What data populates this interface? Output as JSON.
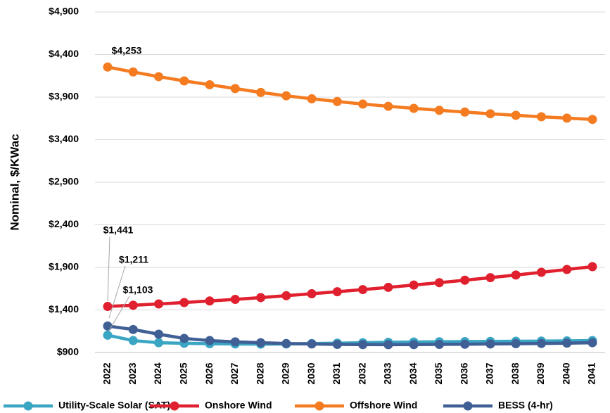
{
  "chart_data": {
    "type": "line",
    "y_label": "Nominal, $/KWac",
    "categories": [
      "2022",
      "2023",
      "2024",
      "2025",
      "2026",
      "2027",
      "2028",
      "2029",
      "2030",
      "2031",
      "2032",
      "2033",
      "2034",
      "2035",
      "2036",
      "2037",
      "2038",
      "2039",
      "2040",
      "2041"
    ],
    "series": [
      {
        "name": "Utility-Scale Solar (SAT)",
        "color": "#3aa6c3",
        "values": [
          1103,
          1040,
          1015,
          1008,
          1003,
          1000,
          998,
          1000,
          1005,
          1010,
          1015,
          1020,
          1023,
          1026,
          1028,
          1030,
          1032,
          1034,
          1036,
          1040
        ],
        "value_labels": [
          "$1,103",
          null,
          null,
          null,
          null,
          null,
          null,
          null,
          null,
          null,
          null,
          null,
          null,
          null,
          null,
          null,
          null,
          null,
          null,
          null
        ]
      },
      {
        "name": "Onshore Wind",
        "color": "#e0202e",
        "values": [
          1441,
          1455,
          1470,
          1487,
          1505,
          1524,
          1545,
          1567,
          1590,
          1614,
          1639,
          1665,
          1692,
          1720,
          1749,
          1779,
          1810,
          1842,
          1875,
          1908
        ],
        "value_labels": [
          "$1,441",
          null,
          null,
          null,
          null,
          null,
          null,
          null,
          null,
          null,
          null,
          null,
          null,
          null,
          null,
          null,
          null,
          null,
          null,
          null
        ]
      },
      {
        "name": "Offshore Wind",
        "color": "#f47b20",
        "values": [
          4253,
          4195,
          4140,
          4090,
          4045,
          4000,
          3955,
          3915,
          3880,
          3848,
          3818,
          3792,
          3768,
          3745,
          3724,
          3704,
          3686,
          3669,
          3653,
          3638
        ],
        "value_labels": [
          "$4,253",
          null,
          null,
          null,
          null,
          null,
          null,
          null,
          null,
          null,
          null,
          null,
          null,
          null,
          null,
          null,
          null,
          null,
          null,
          null
        ]
      },
      {
        "name": "BESS (4-hr)",
        "color": "#3f5f95",
        "values": [
          1211,
          1170,
          1115,
          1065,
          1040,
          1025,
          1015,
          1005,
          1000,
          995,
          993,
          992,
          993,
          995,
          997,
          1000,
          1003,
          1006,
          1010,
          1015
        ],
        "value_labels": [
          "$1,211",
          null,
          null,
          null,
          null,
          null,
          null,
          null,
          null,
          null,
          null,
          null,
          null,
          null,
          null,
          null,
          null,
          null,
          null,
          null
        ]
      }
    ],
    "ylim": [
      900,
      4900
    ],
    "yticks": [
      {
        "value": 900,
        "label": "$900"
      },
      {
        "value": 1400,
        "label": "$1,400"
      },
      {
        "value": 1900,
        "label": "$1,900"
      },
      {
        "value": 2400,
        "label": "$2,400"
      },
      {
        "value": 2900,
        "label": "$2,900"
      },
      {
        "value": 3400,
        "label": "$3,400"
      },
      {
        "value": 3900,
        "label": "$3,900"
      },
      {
        "value": 4400,
        "label": "$4,400"
      },
      {
        "value": 4900,
        "label": "$4,900"
      }
    ],
    "grid": true,
    "legend": "bottom"
  }
}
